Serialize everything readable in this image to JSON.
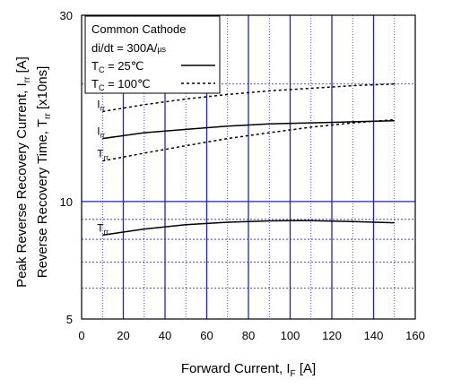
{
  "chart_data": {
    "type": "line",
    "xlabel": "Forward Current,",
    "xlabel_symbol": "I",
    "xlabel_sub": "F",
    "xlabel_unit": "[A]",
    "ylabel_line1": {
      "text": "Peak Reverse Recovery Current,",
      "symbol": "I",
      "sub": "rr",
      "unit": "[A]"
    },
    "ylabel_line2": {
      "text": "Reverse Recovery Time,",
      "symbol": "T",
      "sub": "rr",
      "unit": "[x10ns]"
    },
    "x_ticks": [
      "0",
      "20",
      "40",
      "60",
      "80",
      "100",
      "120",
      "140",
      "160"
    ],
    "y_ticks": [
      "5",
      "10",
      "30"
    ],
    "xlim": [
      0,
      160
    ],
    "ylim": [
      5,
      30
    ],
    "y_scale": "log",
    "grid": true,
    "legend_placement": "top-left",
    "legend": {
      "condition_1": "Common Cathode",
      "condition_2": "di/dt = 300A/",
      "condition_2_unit": "µs",
      "entries": [
        {
          "prefix": "T",
          "sub": "C",
          "label": " =  25℃",
          "style": "solid"
        },
        {
          "prefix": "T",
          "sub": "C",
          "label": " = 100℃",
          "style": "dashed"
        }
      ]
    },
    "series": [
      {
        "annotation": "I",
        "annotation_sub": "rr",
        "style": "dashed",
        "x": [
          10,
          30,
          50,
          70,
          90,
          110,
          130,
          150
        ],
        "y": [
          17.0,
          17.7,
          18.3,
          18.8,
          19.2,
          19.5,
          19.8,
          20.0
        ]
      },
      {
        "annotation": "I",
        "annotation_sub": "rr",
        "style": "solid",
        "x": [
          10,
          30,
          50,
          70,
          90,
          110,
          130,
          150
        ],
        "y": [
          14.5,
          15.0,
          15.3,
          15.6,
          15.8,
          15.9,
          16.0,
          16.1
        ]
      },
      {
        "annotation": "T",
        "annotation_sub": "rr",
        "style": "dashed",
        "x": [
          10,
          30,
          50,
          70,
          90,
          110,
          130,
          150
        ],
        "y": [
          12.7,
          13.3,
          13.9,
          14.5,
          15.0,
          15.5,
          15.9,
          16.2
        ]
      },
      {
        "annotation": "T",
        "annotation_sub": "rr",
        "style": "solid",
        "x": [
          10,
          30,
          50,
          70,
          90,
          100,
          110,
          130,
          150
        ],
        "y": [
          8.2,
          8.5,
          8.72,
          8.85,
          8.92,
          8.93,
          8.93,
          8.88,
          8.82
        ]
      }
    ],
    "colors": {
      "grid": "#1f1fd6",
      "line": "#000000"
    }
  }
}
